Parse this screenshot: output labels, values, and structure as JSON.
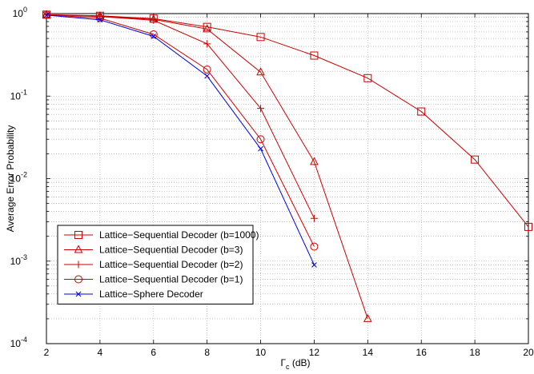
{
  "chart_data": {
    "type": "line",
    "title": "",
    "xlabel": "Γc (dB)",
    "xlabel_main": "Γ",
    "xlabel_sub": "c",
    "xlabel_unit": " (dB)",
    "ylabel": "Average Error Probability",
    "xlim": [
      2,
      20
    ],
    "ylim": [
      0.0001,
      1
    ],
    "yscale": "log",
    "grid": true,
    "legend_position": "bottom-left",
    "x_ticks": [
      "2",
      "4",
      "6",
      "8",
      "10",
      "12",
      "14",
      "16",
      "18",
      "20"
    ],
    "y_ticks": [
      {
        "base": "10",
        "exp": "0"
      },
      {
        "base": "10",
        "exp": "-1"
      },
      {
        "base": "10",
        "exp": "-2"
      },
      {
        "base": "10",
        "exp": "-3"
      },
      {
        "base": "10",
        "exp": "-4"
      }
    ],
    "series": [
      {
        "name": "Lattice−Sequential Decoder (b=1000)",
        "color": "#cc0000",
        "marker": "square",
        "x": [
          2,
          4,
          6,
          8,
          10,
          12,
          14,
          16,
          18,
          20
        ],
        "y": [
          0.97,
          0.94,
          0.87,
          0.69,
          0.52,
          0.31,
          0.165,
          0.065,
          0.017,
          0.0026
        ]
      },
      {
        "name": "Lattice−Sequential Decoder (b=3)",
        "color": "#cc0000",
        "marker": "triangle",
        "x": [
          2,
          4,
          6,
          8,
          10,
          12,
          14
        ],
        "y": [
          0.97,
          0.93,
          0.85,
          0.65,
          0.195,
          0.016,
          0.0002
        ]
      },
      {
        "name": "Lattice−Sequential Decoder (b=2)",
        "color": "#cc0000",
        "marker": "plus",
        "x": [
          2,
          4,
          6,
          8,
          10,
          12
        ],
        "y": [
          0.97,
          0.92,
          0.83,
          0.43,
          0.071,
          0.0033
        ]
      },
      {
        "name": "Lattice−Sequential Decoder (b=1)",
        "color": "#cc0000",
        "marker": "circle",
        "x": [
          2,
          4,
          6,
          8,
          10,
          12
        ],
        "y": [
          0.97,
          0.88,
          0.56,
          0.21,
          0.03,
          0.0015
        ]
      },
      {
        "name": "Lattice−Sphere Decoder",
        "color": "#0000dd",
        "marker": "x",
        "x": [
          2,
          4,
          6,
          8,
          10,
          12
        ],
        "y": [
          0.96,
          0.84,
          0.53,
          0.175,
          0.023,
          0.0009
        ]
      }
    ]
  }
}
